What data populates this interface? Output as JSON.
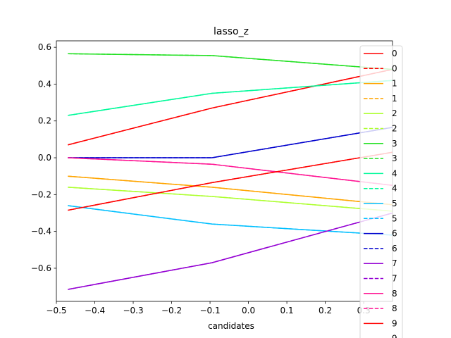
{
  "chart_data": {
    "type": "line",
    "title": "lasso_z",
    "xlabel": "candidates",
    "ylabel": "",
    "xlim": [
      -0.5,
      0.375
    ],
    "ylim": [
      -0.78,
      0.635
    ],
    "xticks": [
      -0.5,
      -0.4,
      -0.3,
      -0.2,
      -0.1,
      0.0,
      0.1,
      0.2,
      0.3
    ],
    "xtick_labels": [
      "−0.5",
      "−0.4",
      "−0.3",
      "−0.2",
      "−0.1",
      "0.0",
      "0.1",
      "0.2",
      "0.3"
    ],
    "yticks": [
      0.6,
      0.4,
      0.2,
      0.0,
      -0.2,
      -0.4,
      -0.6
    ],
    "ytick_labels": [
      "0.6",
      "0.4",
      "0.2",
      "0.0",
      "−0.2",
      "−0.4",
      "−0.6"
    ],
    "grid": false,
    "legend_position": "right",
    "x": [
      -0.47,
      -0.095,
      0.375
    ],
    "series": [
      {
        "name": "0",
        "color": "#ff0000",
        "style": "solid",
        "values": [
          0.07,
          0.27,
          0.48
        ]
      },
      {
        "name": "0",
        "color": "#ff0000",
        "style": "dashed",
        "values": [
          0.07,
          0.27,
          0.48
        ]
      },
      {
        "name": "1",
        "color": "#ffa500",
        "style": "solid",
        "values": [
          -0.1,
          -0.16,
          -0.255
        ]
      },
      {
        "name": "1",
        "color": "#ffa500",
        "style": "dashed",
        "values": [
          -0.1,
          -0.16,
          -0.255
        ]
      },
      {
        "name": "2",
        "color": "#adff2f",
        "style": "solid",
        "values": [
          -0.16,
          -0.21,
          -0.29
        ]
      },
      {
        "name": "2",
        "color": "#adff2f",
        "style": "dashed",
        "values": [
          -0.16,
          -0.21,
          -0.29
        ]
      },
      {
        "name": "3",
        "color": "#22e022",
        "style": "solid",
        "values": [
          0.565,
          0.555,
          0.48
        ]
      },
      {
        "name": "3",
        "color": "#22e022",
        "style": "dashed",
        "values": [
          0.565,
          0.555,
          0.48
        ]
      },
      {
        "name": "4",
        "color": "#00fa9a",
        "style": "solid",
        "values": [
          0.23,
          0.35,
          0.42
        ]
      },
      {
        "name": "4",
        "color": "#00fa9a",
        "style": "dashed",
        "values": [
          0.23,
          0.35,
          0.42
        ]
      },
      {
        "name": "5",
        "color": "#00bfff",
        "style": "solid",
        "values": [
          -0.26,
          -0.36,
          -0.42
        ]
      },
      {
        "name": "5",
        "color": "#00bfff",
        "style": "dashed",
        "values": [
          -0.26,
          -0.36,
          -0.42
        ]
      },
      {
        "name": "6",
        "color": "#0000cd",
        "style": "solid",
        "values": [
          0.0,
          0.0,
          0.165
        ]
      },
      {
        "name": "6",
        "color": "#0000cd",
        "style": "dashed",
        "values": [
          0.0,
          0.0,
          0.165
        ]
      },
      {
        "name": "7",
        "color": "#9400d3",
        "style": "solid",
        "values": [
          -0.715,
          -0.57,
          -0.3
        ]
      },
      {
        "name": "7",
        "color": "#9400d3",
        "style": "dashed",
        "values": [
          -0.715,
          -0.57,
          -0.3
        ]
      },
      {
        "name": "8",
        "color": "#ff1493",
        "style": "solid",
        "values": [
          0.0,
          -0.035,
          -0.15
        ]
      },
      {
        "name": "8",
        "color": "#ff1493",
        "style": "dashed",
        "values": [
          0.0,
          -0.035,
          -0.15
        ]
      },
      {
        "name": "9",
        "color": "#ff0000",
        "style": "solid",
        "values": [
          -0.285,
          -0.135,
          0.03
        ]
      },
      {
        "name": "9",
        "color": "#ff0000",
        "style": "dashed",
        "values": [
          -0.285,
          -0.135,
          0.03
        ]
      }
    ]
  }
}
